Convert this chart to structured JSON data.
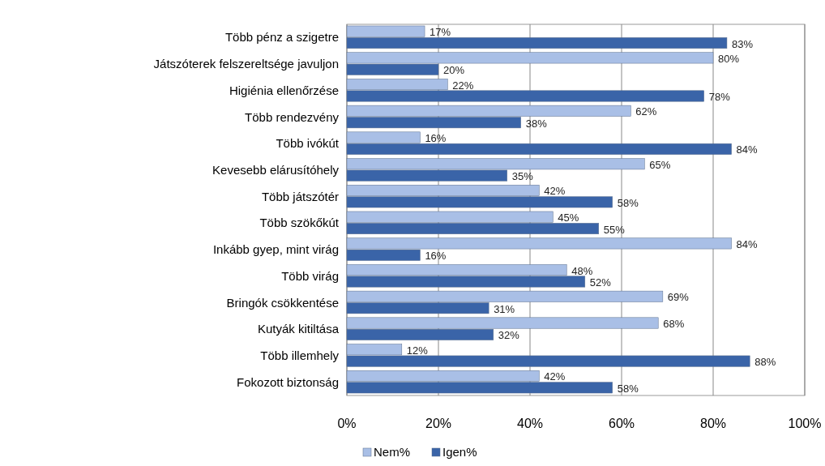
{
  "chart_data": {
    "type": "bar",
    "orientation": "horizontal",
    "categories": [
      "Több pénz a szigetre",
      "Játszóterek felszereltsége javuljon",
      "Higiénia ellenőrzése",
      "Több rendezvény",
      "Több ivókút",
      "Kevesebb elárusítóhely",
      "Több játszótér",
      "Több szökőkút",
      "Inkább gyep, mint virág",
      "Több virág",
      "Bringók csökkentése",
      "Kutyák kitiltása",
      "Több illemhely",
      "Fokozott biztonság"
    ],
    "series": [
      {
        "name": "Nem%",
        "color": "#a9bfe6",
        "values": [
          17,
          80,
          22,
          62,
          16,
          65,
          42,
          45,
          84,
          48,
          69,
          68,
          12,
          42
        ],
        "value_labels": [
          "17%",
          "80%",
          "22%",
          "62%",
          "16%",
          "65%",
          "42%",
          "45%",
          "84%",
          "48%",
          "69%",
          "68%",
          "12%",
          "42%"
        ]
      },
      {
        "name": "Igen%",
        "color": "#3a64a8",
        "values": [
          83,
          20,
          78,
          38,
          84,
          35,
          58,
          55,
          16,
          52,
          31,
          32,
          88,
          58
        ],
        "value_labels": [
          "83%",
          "20%",
          "78%",
          "38%",
          "84%",
          "35%",
          "58%",
          "55%",
          "16%",
          "52%",
          "31%",
          "32%",
          "88%",
          "58%"
        ]
      }
    ],
    "xlim": [
      0,
      100
    ],
    "xticks": [
      {
        "value": 0,
        "label": "0%"
      },
      {
        "value": 20,
        "label": "20%"
      },
      {
        "value": 40,
        "label": "40%"
      },
      {
        "value": 60,
        "label": "60%"
      },
      {
        "value": 80,
        "label": "80%"
      },
      {
        "value": 100,
        "label": "100%"
      }
    ],
    "grid": "x",
    "legend": "bottom"
  }
}
